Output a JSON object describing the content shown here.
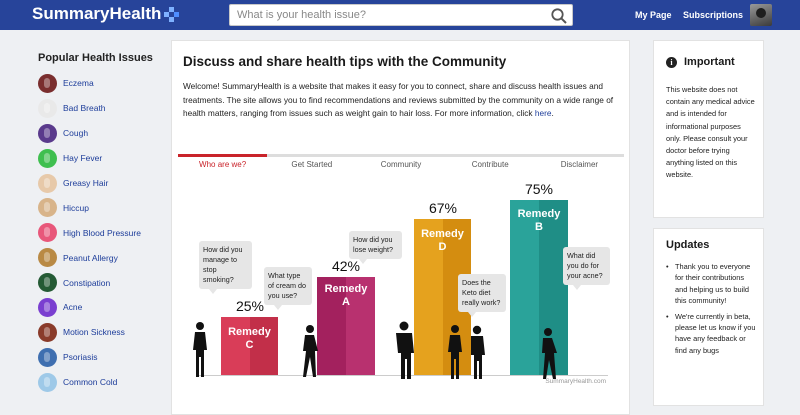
{
  "header": {
    "logo": "SummaryHealth",
    "search_placeholder": "What is your health issue?",
    "nav": {
      "my_page": "My Page",
      "subscriptions": "Subscriptions"
    }
  },
  "sidebar": {
    "title": "Popular Health Issues",
    "items": [
      {
        "label": "Eczema",
        "color": "#7a2e2e"
      },
      {
        "label": "Bad Breath",
        "color": "#e9e9e9"
      },
      {
        "label": "Cough",
        "color": "#5a3a8c"
      },
      {
        "label": "Hay Fever",
        "color": "#3fbf4f"
      },
      {
        "label": "Greasy Hair",
        "color": "#e7c9a9"
      },
      {
        "label": "Hiccup",
        "color": "#d8b48a"
      },
      {
        "label": "High Blood Pressure",
        "color": "#e8577a"
      },
      {
        "label": "Peanut Allergy",
        "color": "#b98a45"
      },
      {
        "label": "Constipation",
        "color": "#245a34"
      },
      {
        "label": "Acne",
        "color": "#7a3fd0"
      },
      {
        "label": "Motion Sickness",
        "color": "#8a3b2a"
      },
      {
        "label": "Psoriasis",
        "color": "#3f6fb0"
      },
      {
        "label": "Common Cold",
        "color": "#9ec9e8"
      }
    ]
  },
  "main": {
    "title": "Discuss and share health tips with the Community",
    "intro": "Welcome! SummaryHealth is a website that makes it easy for you to connect, share and discuss health issues and treatments. The site allows you to find recommendations and reviews submitted by the community on a wide range of health matters, ranging from issues such as weight gain to hair loss. For more information, click ",
    "intro_link": "here",
    "intro_end": ".",
    "tabs": [
      "Who are we?",
      "Get Started",
      "Community",
      "Contribute",
      "Disclaimer"
    ],
    "infographic": {
      "remedies": [
        {
          "line1": "Remedy",
          "line2": "C",
          "pct": "25%",
          "value": 25,
          "color_a": "#d93d58",
          "color_b": "#c22f49"
        },
        {
          "line1": "Remedy",
          "line2": "A",
          "pct": "42%",
          "value": 42,
          "color_a": "#a3215e",
          "color_b": "#b8316f"
        },
        {
          "line1": "Remedy",
          "line2": "D",
          "pct": "67%",
          "value": 67,
          "color_a": "#e5a21e",
          "color_b": "#d48d10"
        },
        {
          "line1": "Remedy",
          "line2": "B",
          "pct": "75%",
          "value": 75,
          "color_a": "#2aa39a",
          "color_b": "#1f8e86"
        }
      ],
      "bubbles": [
        "How did you manage to stop smoking?",
        "What type of cream do you use?",
        "How did you lose weight?",
        "Does the Keto diet really work?",
        "What did you do for your acne?"
      ],
      "credit": "SummaryHealth.com"
    }
  },
  "important": {
    "title": "Important",
    "text": "This website does not contain any medical advice and is intended for informational purposes only. Please consult your doctor before trying anything listed on this website."
  },
  "updates": {
    "title": "Updates",
    "items": [
      "Thank you to everyone for their contributions and helping us to build this community!",
      "We're currently in beta, please let us know if you have any feedback or find any bugs"
    ]
  }
}
